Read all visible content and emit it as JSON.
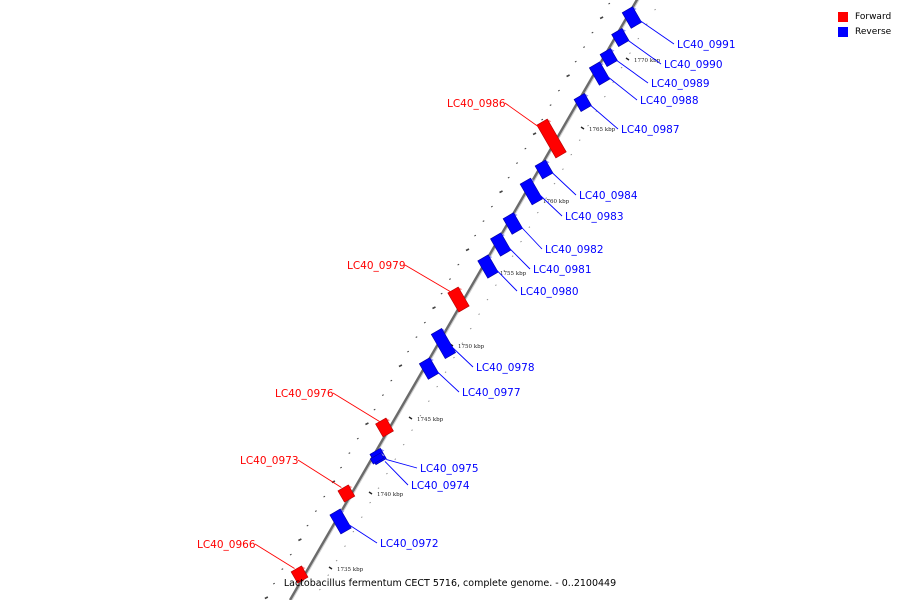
{
  "caption": "Lactobacillus fermentum CECT 5716, complete genome. - 0..2100449",
  "legend": [
    {
      "label": "Forward",
      "color": "#ff0000"
    },
    {
      "label": "Reverse",
      "color": "#0000ff"
    }
  ],
  "strand_colors": {
    "forward": "#ff0000",
    "reverse": "#0000ff"
  },
  "kbp_ticks": [
    "1735 kbp",
    "1740 kbp",
    "1745 kbp",
    "1750 kbp",
    "1755 kbp",
    "1760 kbp",
    "1765 kbp",
    "1770 kbp"
  ],
  "genes": [
    {
      "label": "LC40_0991",
      "strand": "reverse"
    },
    {
      "label": "LC40_0990",
      "strand": "reverse"
    },
    {
      "label": "LC40_0989",
      "strand": "reverse"
    },
    {
      "label": "LC40_0988",
      "strand": "reverse"
    },
    {
      "label": "LC40_0987",
      "strand": "reverse"
    },
    {
      "label": "LC40_0986",
      "strand": "forward"
    },
    {
      "label": "LC40_0984",
      "strand": "reverse"
    },
    {
      "label": "LC40_0983",
      "strand": "reverse"
    },
    {
      "label": "LC40_0982",
      "strand": "reverse"
    },
    {
      "label": "LC40_0981",
      "strand": "reverse"
    },
    {
      "label": "LC40_0980",
      "strand": "reverse"
    },
    {
      "label": "LC40_0979",
      "strand": "forward"
    },
    {
      "label": "LC40_0978",
      "strand": "reverse"
    },
    {
      "label": "LC40_0977",
      "strand": "reverse"
    },
    {
      "label": "LC40_0976",
      "strand": "forward"
    },
    {
      "label": "LC40_0975",
      "strand": "reverse"
    },
    {
      "label": "LC40_0974",
      "strand": "reverse"
    },
    {
      "label": "LC40_0973",
      "strand": "forward"
    },
    {
      "label": "LC40_0972",
      "strand": "reverse"
    },
    {
      "label": "LC40_0966",
      "strand": "forward"
    }
  ]
}
